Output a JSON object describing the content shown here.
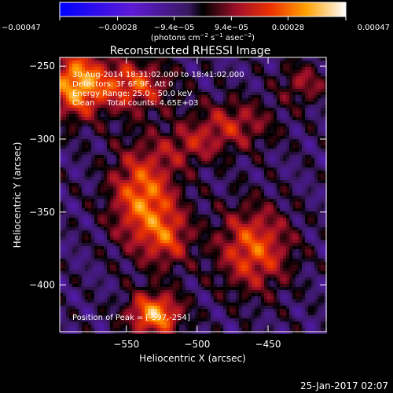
{
  "chart_data": {
    "type": "heatmap",
    "title": "Reconstructed RHESSI Image",
    "xlabel": "Heliocentric X (arcsec)",
    "ylabel": "Heliocentric Y (arcsec)",
    "xlim": [
      -597,
      -409
    ],
    "ylim": [
      -432,
      -244
    ],
    "xticks": [
      -550,
      -500,
      -450
    ],
    "xtick_labels": [
      "−550",
      "−500",
      "−450"
    ],
    "yticks": [
      -250,
      -300,
      -350,
      -400
    ],
    "ytick_labels": [
      "−250",
      "−300",
      "−350",
      "−400"
    ],
    "colorbar": {
      "range": [
        -0.00047,
        0.00047
      ],
      "ticks": [
        -0.00047,
        -0.00028,
        -9.4e-05,
        9.4e-05,
        0.00028,
        0.00047
      ],
      "tick_labels": [
        "−0.00047",
        "−0.00028",
        "−9.4e−05",
        "9.4e−05",
        "0.00028",
        "0.00047"
      ],
      "label_main": "(photons cm",
      "label_exp1": "−2",
      "label_mid1": " s",
      "label_exp2": "−1",
      "label_mid2": " asec",
      "label_exp3": "−2",
      "label_end": ")"
    },
    "annotations": [
      "30-Aug-2014 18:31:02.000 to 18:41:02.000",
      "Detectors: 3F 6F 9F, Att 0",
      "Energy Range: 25.0 - 50.0 keV",
      "Clean     Total counts: 4.65E+03"
    ],
    "peak_label": "Position of Peak = [",
    "peak_value": "-597,-254",
    "peak_close": "]",
    "sources": [
      {
        "x": -585,
        "y": -262,
        "sx": 14,
        "sy": 16,
        "amp": 0.0004
      },
      {
        "x": -545,
        "y": -263,
        "sx": 18,
        "sy": 12,
        "amp": 0.00028
      },
      {
        "x": -538,
        "y": -340,
        "sx": 16,
        "sy": 24,
        "amp": 0.00034
      },
      {
        "x": -520,
        "y": -368,
        "sx": 12,
        "sy": 14,
        "amp": 0.0002
      },
      {
        "x": -530,
        "y": -420,
        "sx": 13,
        "sy": 10,
        "amp": 0.0004
      },
      {
        "x": -460,
        "y": -375,
        "sx": 18,
        "sy": 20,
        "amp": 0.0003
      },
      {
        "x": -475,
        "y": -290,
        "sx": 20,
        "sy": 12,
        "amp": 0.0002
      },
      {
        "x": -505,
        "y": -305,
        "sx": 15,
        "sy": 10,
        "amp": 0.00015
      },
      {
        "x": -425,
        "y": -262,
        "sx": 12,
        "sy": 10,
        "amp": 0.00016
      }
    ]
  },
  "timestamp": "25-Jan-2017 02:07"
}
